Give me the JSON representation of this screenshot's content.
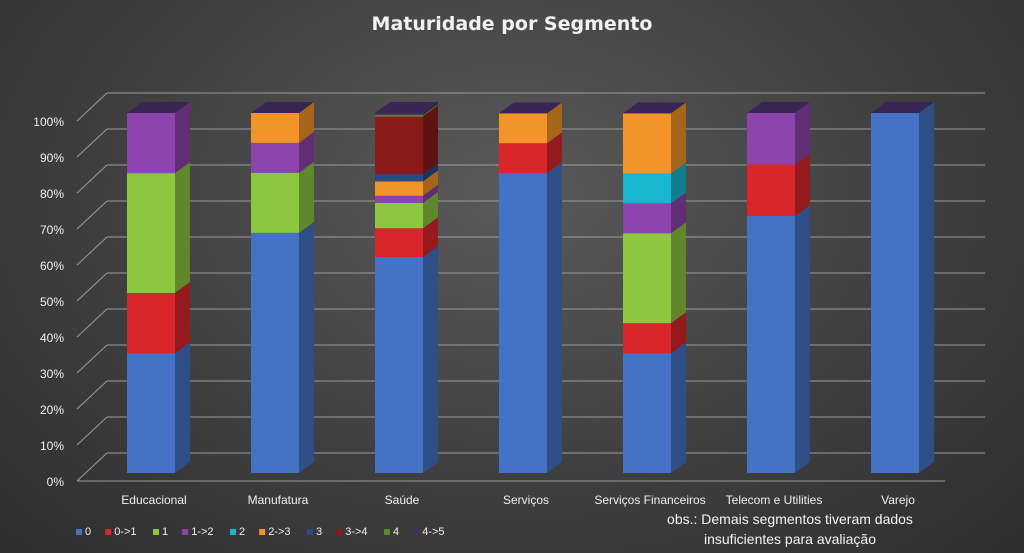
{
  "chart_data": {
    "type": "bar",
    "stacked": true,
    "three_d": true,
    "title": "Maturidade  por  Segmento",
    "categories": [
      "Educacional",
      "Manufatura",
      "Saúde",
      "Serviços",
      "Serviços Financeiros",
      "Telecom e Utilities",
      "Varejo"
    ],
    "yticks": [
      "0%",
      "10%",
      "20%",
      "30%",
      "40%",
      "50%",
      "60%",
      "70%",
      "80%",
      "90%",
      "100%"
    ],
    "ylim": [
      0,
      100
    ],
    "grid": true,
    "legend_position": "bottom-left",
    "series": [
      {
        "name": "0",
        "color": "#4472c4",
        "values": [
          33.3,
          66.7,
          60,
          83.3,
          33.3,
          71.4,
          100
        ]
      },
      {
        "name": "0->1",
        "color": "#d9262a",
        "values": [
          16.7,
          0,
          8,
          8.3,
          8.3,
          14.3,
          0
        ]
      },
      {
        "name": "1",
        "color": "#8dc63f",
        "values": [
          33.3,
          16.7,
          7,
          0,
          25,
          0,
          0
        ]
      },
      {
        "name": "1->2",
        "color": "#8e44ad",
        "values": [
          16.7,
          8.3,
          2,
          0,
          8.3,
          14.3,
          0
        ]
      },
      {
        "name": "2",
        "color": "#17b8cf",
        "values": [
          0,
          0,
          0,
          0,
          8.3,
          0,
          0
        ]
      },
      {
        "name": "2->3",
        "color": "#f39428",
        "values": [
          0,
          8.3,
          4,
          8.3,
          16.7,
          0,
          0
        ]
      },
      {
        "name": "3",
        "color": "#274a8a",
        "values": [
          0,
          0,
          2,
          0,
          0,
          0,
          0
        ]
      },
      {
        "name": "3->4",
        "color": "#8b1a1a",
        "values": [
          0,
          0,
          16,
          0,
          0,
          0,
          0
        ]
      },
      {
        "name": "4",
        "color": "#5a8a2a",
        "values": [
          0,
          0,
          0.5,
          0,
          0,
          0,
          0
        ]
      },
      {
        "name": "4->5",
        "color": "#4a2a6a",
        "values": [
          0,
          0,
          0.5,
          0,
          0,
          0,
          0
        ]
      }
    ],
    "annotation": [
      "obs.: Demais segmentos tiveram dados",
      "insuficientes para avaliação"
    ]
  }
}
